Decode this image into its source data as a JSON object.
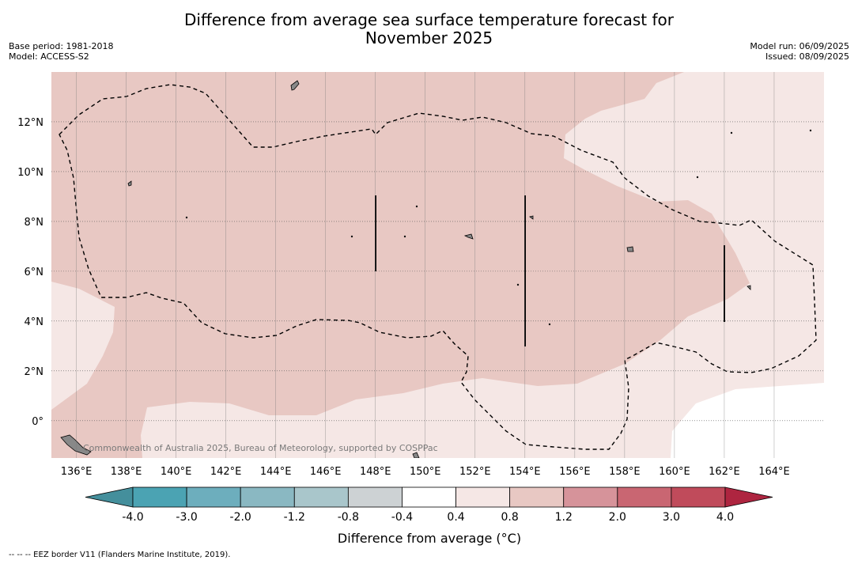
{
  "title_line1": "Difference from average sea surface temperature forecast for",
  "title_line2": "November 2025",
  "meta_left": {
    "base_period": "Base period: 1981-2018",
    "model": "Model: ACCESS-S2"
  },
  "meta_right": {
    "model_run": "Model run: 06/09/2025",
    "issued": "Issued: 08/09/2025"
  },
  "map": {
    "lon_ticks": [
      "136°E",
      "138°E",
      "140°E",
      "142°E",
      "144°E",
      "146°E",
      "148°E",
      "150°E",
      "152°E",
      "154°E",
      "156°E",
      "158°E",
      "160°E",
      "162°E",
      "164°E"
    ],
    "lat_ticks": [
      "12°N",
      "10°N",
      "8°N",
      "6°N",
      "4°N",
      "2°N",
      "0°"
    ],
    "lon_range": [
      135,
      166
    ],
    "lat_range": [
      -1.5,
      14
    ],
    "copyright": "Commonwealth of Australia 2025, Bureau of Meteorology, supported by COSPPac"
  },
  "legend": {
    "boundaries": [
      "-4.0",
      "-3.0",
      "-2.0",
      "-1.2",
      "-0.8",
      "-0.4",
      "0.4",
      "0.8",
      "1.2",
      "2.0",
      "3.0",
      "4.0"
    ],
    "colors": [
      "#448f9c",
      "#4ba3b3",
      "#6daebd",
      "#8ab8c2",
      "#a9c6cb",
      "#cdd2d4",
      "#ffffff",
      "#f5e7e5",
      "#e8c8c3",
      "#d6939a",
      "#c96672",
      "#c04b5b",
      "#ae2540"
    ],
    "label": "Difference from average (°C)"
  },
  "footer": "--  --  -- EEZ border V11 (Flanders Marine Institute, 2019)."
}
